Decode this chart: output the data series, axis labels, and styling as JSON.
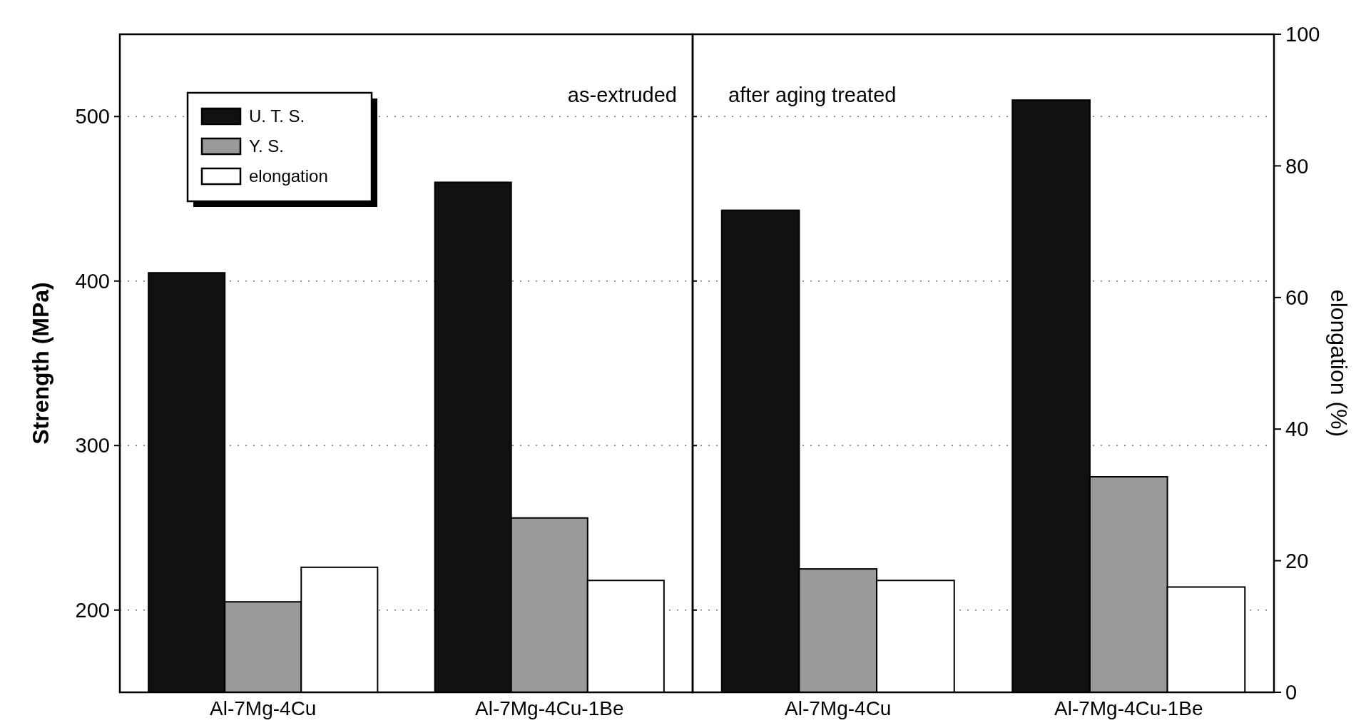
{
  "chart_data": [
    {
      "type": "bar",
      "categories": [
        "Al-7Mg-4Cu",
        "Al-7Mg-4Cu-1Be"
      ],
      "series": [
        {
          "name": "U. T. S.",
          "color": "#111111",
          "values": [
            405,
            460
          ]
        },
        {
          "name": "Y. S.",
          "color": "#9a9a9a",
          "values": [
            205,
            256
          ]
        },
        {
          "name": "elongation",
          "color": "#ffffff",
          "values": [
            19,
            17
          ],
          "axis": "y2"
        }
      ],
      "ylabel": "Strength (MPa)",
      "ylim": [
        150,
        550
      ],
      "yticks": [
        200,
        300,
        400,
        500
      ],
      "y2lim": [
        0,
        100
      ],
      "tick_labels": "xy",
      "grid": "y",
      "legend": "top left",
      "annotations": [
        "as-extruded"
      ]
    },
    {
      "type": "bar",
      "categories": [
        "Al-7Mg-4Cu",
        "Al-7Mg-4Cu-1Be"
      ],
      "series": [
        {
          "color": "#111111",
          "values": [
            443,
            510
          ]
        },
        {
          "color": "#9a9a9a",
          "values": [
            225,
            281
          ]
        },
        {
          "color": "#ffffff",
          "values": [
            17,
            16
          ],
          "axis": "y2"
        }
      ],
      "ylim": [
        150,
        550
      ],
      "tick_labels": "xy2",
      "y2label": "elongation (%)",
      "y2lim": [
        0,
        100
      ],
      "y2ticks": [
        0,
        20,
        40,
        60,
        80,
        100
      ],
      "grid": "y",
      "annotations": [
        "after aging treated"
      ]
    }
  ]
}
